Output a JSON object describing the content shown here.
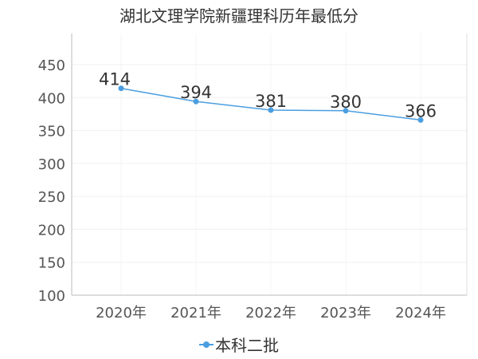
{
  "chart_data": {
    "type": "line",
    "title": "湖北文理学院新疆理科历年最低分",
    "categories": [
      "2020年",
      "2021年",
      "2022年",
      "2023年",
      "2024年"
    ],
    "series": [
      {
        "name": "本科二批",
        "values": [
          414,
          394,
          381,
          380,
          366
        ],
        "color": "#4a9ee0"
      }
    ],
    "ylim": [
      100,
      450
    ],
    "yticks": [
      100,
      150,
      200,
      250,
      300,
      350,
      400,
      450
    ],
    "grid": true,
    "legend": "bottom-center"
  }
}
